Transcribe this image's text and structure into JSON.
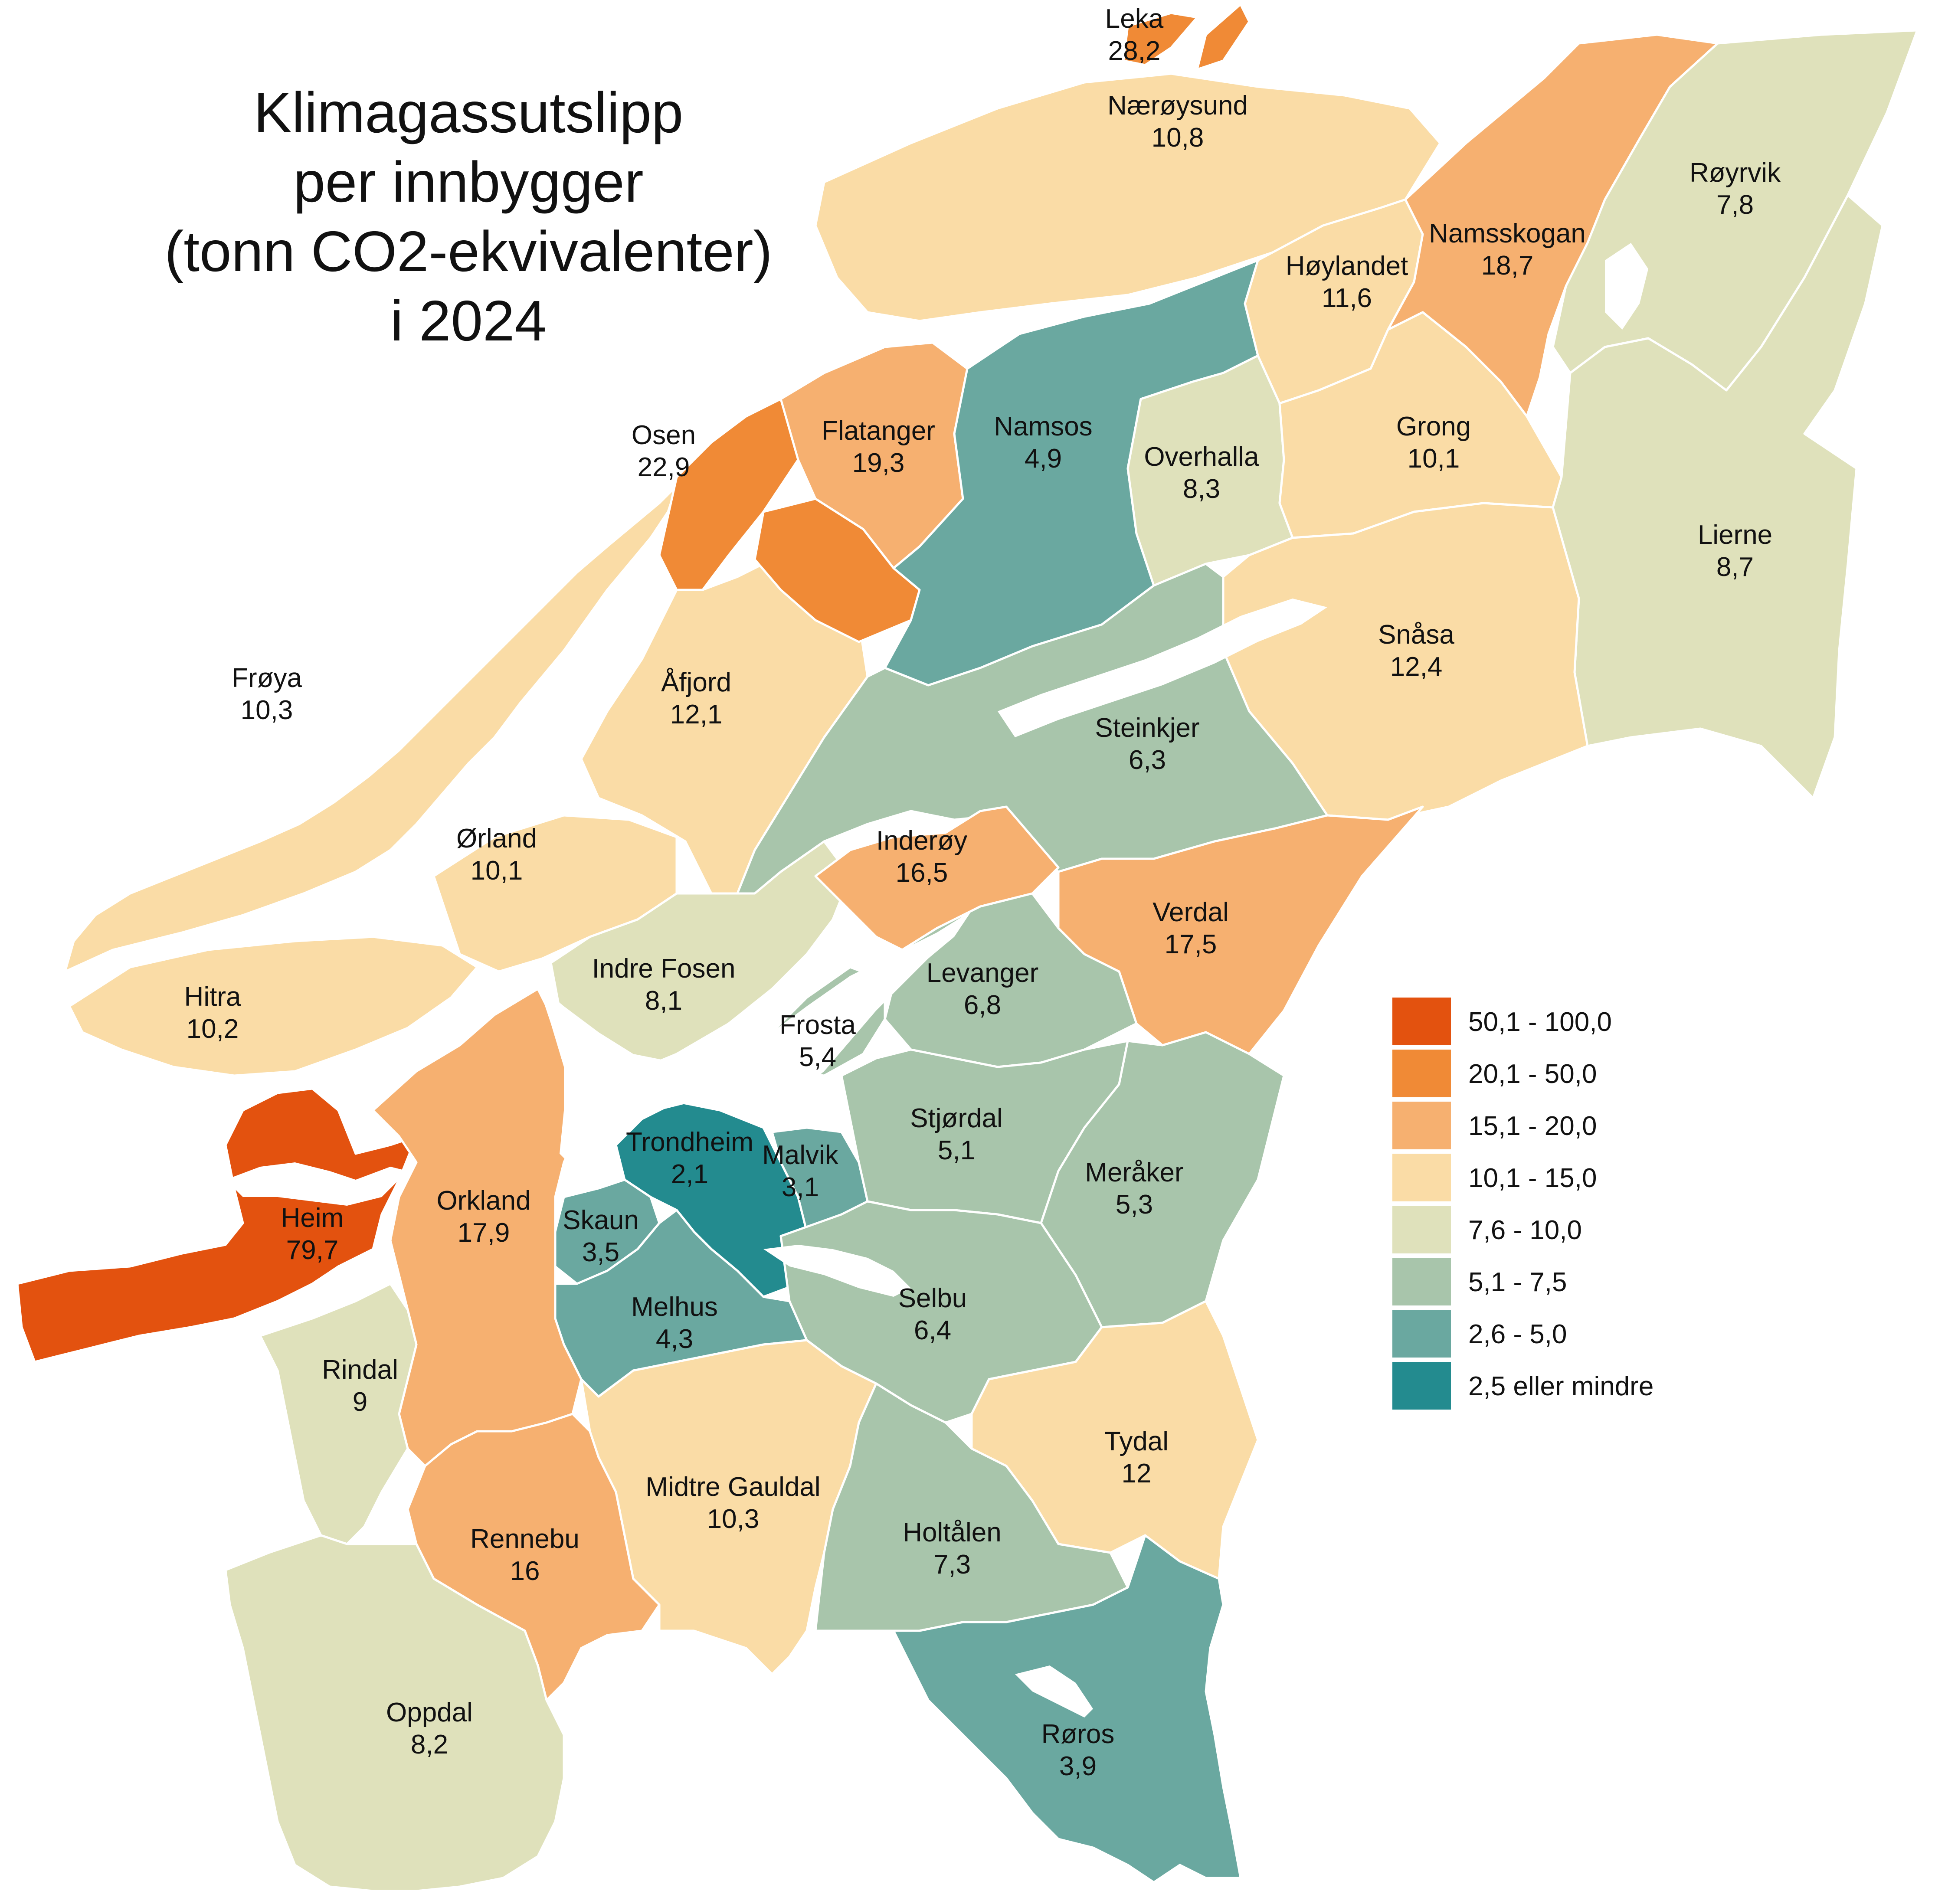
{
  "title": {
    "lines": [
      "Klimagassutslipp",
      "per innbygger",
      "(tonn CO2-ekvivalenter)",
      "i  2024"
    ]
  },
  "legend": {
    "classes": [
      {
        "label": "50,1 - 100,0",
        "color": "#e3520f"
      },
      {
        "label": "20,1 - 50,0",
        "color": "#f08a36"
      },
      {
        "label": "15,1 - 20,0",
        "color": "#f6b070"
      },
      {
        "label": "10,1 - 15,0",
        "color": "#fadca6"
      },
      {
        "label": "7,6 - 10,0",
        "color": "#dfe1bb"
      },
      {
        "label": "5,1 - 7,5",
        "color": "#a8c5ab"
      },
      {
        "label": "2,6 - 5,0",
        "color": "#6aa8a0"
      },
      {
        "label": "2,5 eller mindre",
        "color": "#238b8f"
      }
    ]
  },
  "municipalities": [
    {
      "id": "leka",
      "name": "Leka",
      "value": "28,2",
      "class": 1
    },
    {
      "id": "naeroysund",
      "name": "Nærøysund",
      "value": "10,8",
      "class": 3
    },
    {
      "id": "royrvik",
      "name": "Røyrvik",
      "value": "7,8",
      "class": 4
    },
    {
      "id": "namsskogan",
      "name": "Namsskogan",
      "value": "18,7",
      "class": 2
    },
    {
      "id": "hoylandet",
      "name": "Høylandet",
      "value": "11,6",
      "class": 3
    },
    {
      "id": "grong",
      "name": "Grong",
      "value": "10,1",
      "class": 3
    },
    {
      "id": "namsos",
      "name": "Namsos",
      "value": "4,9",
      "class": 6
    },
    {
      "id": "flatanger",
      "name": "Flatanger",
      "value": "19,3",
      "class": 2
    },
    {
      "id": "osen",
      "name": "Osen",
      "value": "22,9",
      "class": 1
    },
    {
      "id": "overhalla",
      "name": "Overhalla",
      "value": "8,3",
      "class": 4
    },
    {
      "id": "lierne",
      "name": "Lierne",
      "value": "8,7",
      "class": 4
    },
    {
      "id": "snasa",
      "name": "Snåsa",
      "value": "12,4",
      "class": 3
    },
    {
      "id": "froya",
      "name": "Frøya",
      "value": "10,3",
      "class": 3
    },
    {
      "id": "afjord",
      "name": "Åfjord",
      "value": "12,1",
      "class": 3
    },
    {
      "id": "steinkjer",
      "name": "Steinkjer",
      "value": "6,3",
      "class": 5
    },
    {
      "id": "orland",
      "name": "Ørland",
      "value": "10,1",
      "class": 3
    },
    {
      "id": "inderoy",
      "name": "Inderøy",
      "value": "16,5",
      "class": 2
    },
    {
      "id": "verdal",
      "name": "Verdal",
      "value": "17,5",
      "class": 2
    },
    {
      "id": "indrefosen",
      "name": "Indre Fosen",
      "value": "8,1",
      "class": 4
    },
    {
      "id": "levanger",
      "name": "Levanger",
      "value": "6,8",
      "class": 5
    },
    {
      "id": "hitra",
      "name": "Hitra",
      "value": "10,2",
      "class": 3
    },
    {
      "id": "frosta",
      "name": "Frosta",
      "value": "5,4",
      "class": 5
    },
    {
      "id": "stjordal",
      "name": "Stjørdal",
      "value": "5,1",
      "class": 5
    },
    {
      "id": "trondheim",
      "name": "Trondheim",
      "value": "2,1",
      "class": 7
    },
    {
      "id": "malvik",
      "name": "Malvik",
      "value": "3,1",
      "class": 6
    },
    {
      "id": "meraker",
      "name": "Meråker",
      "value": "5,3",
      "class": 5
    },
    {
      "id": "heim",
      "name": "Heim",
      "value": "79,7",
      "class": 0
    },
    {
      "id": "orkland",
      "name": "Orkland",
      "value": "17,9",
      "class": 2
    },
    {
      "id": "skaun",
      "name": "Skaun",
      "value": "3,5",
      "class": 6
    },
    {
      "id": "melhus",
      "name": "Melhus",
      "value": "4,3",
      "class": 6
    },
    {
      "id": "selbu",
      "name": "Selbu",
      "value": "6,4",
      "class": 5
    },
    {
      "id": "rindal",
      "name": "Rindal",
      "value": "9",
      "class": 4
    },
    {
      "id": "tydal",
      "name": "Tydal",
      "value": "12",
      "class": 3
    },
    {
      "id": "midtregauldal",
      "name": "Midtre Gauldal",
      "value": "10,3",
      "class": 3
    },
    {
      "id": "holtalen",
      "name": "Holtålen",
      "value": "7,3",
      "class": 5
    },
    {
      "id": "rennebu",
      "name": "Rennebu",
      "value": "16",
      "class": 2
    },
    {
      "id": "roros",
      "name": "Røros",
      "value": "3,9",
      "class": 6
    },
    {
      "id": "oppdal",
      "name": "Oppdal",
      "value": "8,2",
      "class": 4
    }
  ]
}
